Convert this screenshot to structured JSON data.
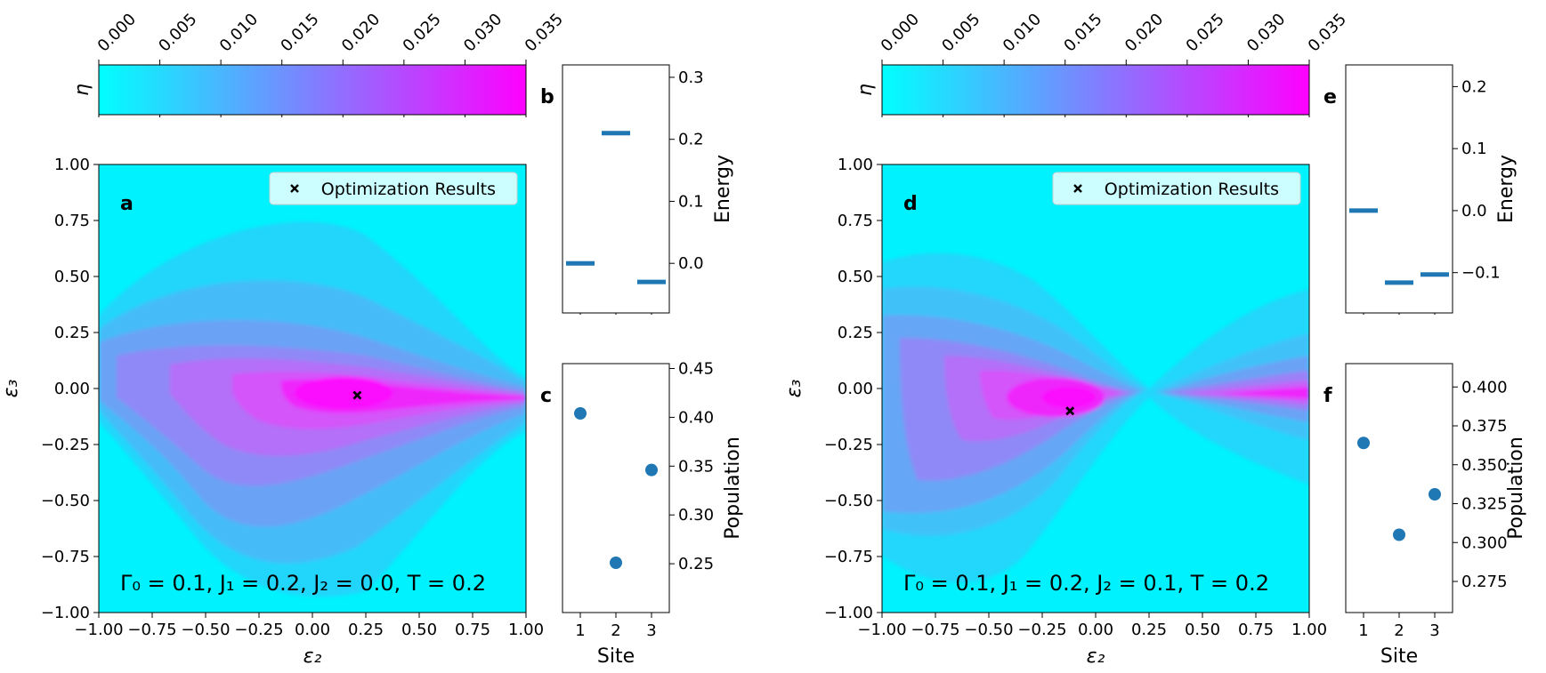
{
  "colors": {
    "colormap": [
      "#00ffff",
      "#ff00ff"
    ],
    "level_bar": "#1f77b4",
    "population_point": "#1f77b4",
    "marker": "#000000",
    "background": "#ffffff"
  },
  "colorbar": {
    "label": "η",
    "ticks": [
      "0.000",
      "0.005",
      "0.010",
      "0.015",
      "0.020",
      "0.025",
      "0.030",
      "0.035"
    ],
    "range": [
      0,
      0.035
    ]
  },
  "chart_data": [
    {
      "id": "a",
      "type": "heatmap",
      "panel_letter": "a",
      "xlabel": "ε₂",
      "ylabel": "ε₃",
      "xlim": [
        -1,
        1
      ],
      "ylim": [
        -1,
        1
      ],
      "xticks": [
        "−1.00",
        "−0.75",
        "−0.50",
        "−0.25",
        "0.00",
        "0.25",
        "0.50",
        "0.75",
        "1.00"
      ],
      "yticks": [
        "−1.00",
        "−0.75",
        "−0.50",
        "−0.25",
        "0.00",
        "0.25",
        "0.50",
        "0.75",
        "1.00"
      ],
      "legend": "Optimization Results",
      "legend_position": "top-right",
      "optimum": {
        "x": 0.21,
        "y": -0.03
      },
      "annotation": "Γ₀ = 0.1, J₁ = 0.2, J₂ = 0.0, T = 0.2",
      "colorbar_label": "η",
      "peak_value": 0.035
    },
    {
      "id": "b",
      "type": "scatter",
      "panel_letter": "b",
      "ylabel": "Energy",
      "ylim": [
        -0.08,
        0.32
      ],
      "yticks": [
        0.0,
        0.1,
        0.2,
        0.3
      ],
      "ytick_labels": [
        "0.0",
        "0.1",
        "0.2",
        "0.3"
      ],
      "x": [
        1,
        2,
        3
      ],
      "values": [
        0.0,
        0.21,
        -0.03
      ]
    },
    {
      "id": "c",
      "type": "scatter",
      "panel_letter": "c",
      "xlabel": "Site",
      "ylabel": "Population",
      "categories": [
        "1",
        "2",
        "3"
      ],
      "ylim": [
        0.2,
        0.455
      ],
      "yticks": [
        0.25,
        0.3,
        0.35,
        0.4,
        0.45
      ],
      "ytick_labels": [
        "0.25",
        "0.30",
        "0.35",
        "0.40",
        "0.45"
      ],
      "values": [
        0.404,
        0.251,
        0.346
      ]
    },
    {
      "id": "d",
      "type": "heatmap",
      "panel_letter": "d",
      "xlabel": "ε₂",
      "ylabel": "ε₃",
      "xlim": [
        -1,
        1
      ],
      "ylim": [
        -1,
        1
      ],
      "xticks": [
        "−1.00",
        "−0.75",
        "−0.50",
        "−0.25",
        "0.00",
        "0.25",
        "0.50",
        "0.75",
        "1.00"
      ],
      "yticks": [
        "−1.00",
        "−0.75",
        "−0.50",
        "−0.25",
        "0.00",
        "0.25",
        "0.50",
        "0.75",
        "1.00"
      ],
      "legend": "Optimization Results",
      "legend_position": "top-right",
      "optimum": {
        "x": -0.12,
        "y": -0.1
      },
      "annotation": "Γ₀ = 0.1, J₁ = 0.2, J₂ = 0.1, T = 0.2",
      "colorbar_label": "η",
      "peak_value": 0.035
    },
    {
      "id": "e",
      "type": "scatter",
      "panel_letter": "e",
      "ylabel": "Energy",
      "ylim": [
        -0.165,
        0.235
      ],
      "yticks": [
        -0.1,
        0.0,
        0.1,
        0.2
      ],
      "ytick_labels": [
        "−0.1",
        "0.0",
        "0.1",
        "0.2"
      ],
      "x": [
        1,
        2,
        3
      ],
      "values": [
        0.0,
        -0.116,
        -0.103
      ]
    },
    {
      "id": "f",
      "type": "scatter",
      "panel_letter": "f",
      "xlabel": "Site",
      "ylabel": "Population",
      "categories": [
        "1",
        "2",
        "3"
      ],
      "ylim": [
        0.255,
        0.415
      ],
      "yticks": [
        0.275,
        0.3,
        0.325,
        0.35,
        0.375,
        0.4
      ],
      "ytick_labels": [
        "0.275",
        "0.300",
        "0.325",
        "0.350",
        "0.375",
        "0.400"
      ],
      "values": [
        0.364,
        0.305,
        0.331
      ]
    }
  ]
}
